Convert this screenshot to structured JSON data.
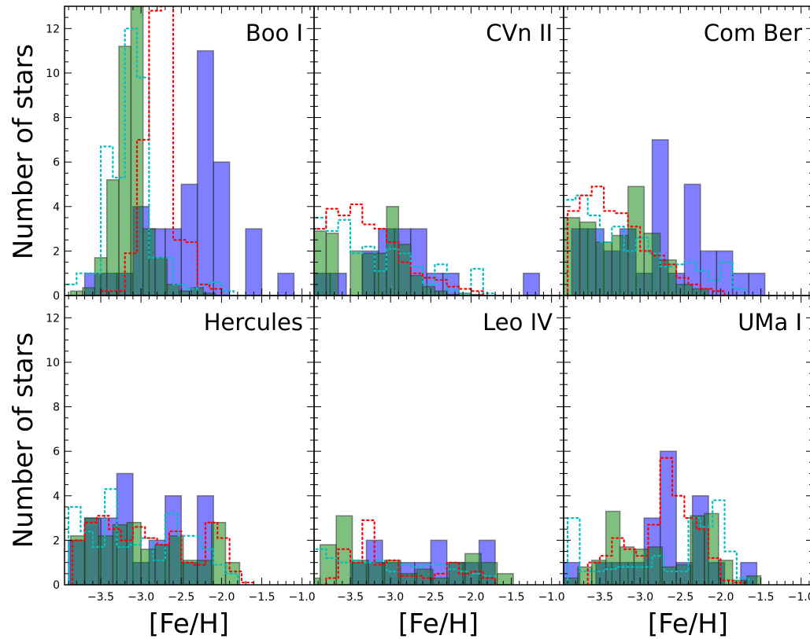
{
  "figure": {
    "ylabel": "Number of stars",
    "xlabel": "[Fe/H]"
  },
  "chart_data": [
    {
      "type": "bar",
      "title": "Boo I",
      "xlabel": "",
      "ylabel": "Number of stars",
      "xlim": [
        -3.95,
        -0.85
      ],
      "ylim": [
        0,
        13
      ],
      "xticks": [
        -3.5,
        -3.0,
        -2.5,
        -2.0,
        -1.5,
        -1.0
      ],
      "yticks": [
        0,
        2,
        4,
        6,
        8,
        10,
        12
      ],
      "grid": false,
      "series": [
        {
          "color": "#0000ff",
          "style": "filled",
          "edges": [
            -3.9,
            -3.7,
            -3.5,
            -3.3,
            -3.1,
            -2.9,
            -2.7,
            -2.5,
            -2.3,
            -2.1,
            -1.9,
            -1.7,
            -1.5,
            -1.3,
            -1.1
          ],
          "values": [
            0,
            1,
            1,
            1,
            4,
            3,
            3,
            5,
            11,
            6,
            0,
            3,
            0,
            1
          ]
        },
        {
          "color": "#008000",
          "style": "filled",
          "edges": [
            -3.875,
            -3.725,
            -3.575,
            -3.425,
            -3.275,
            -3.125,
            -2.975,
            -2.825,
            -2.675,
            -2.525,
            -2.375,
            -2.225,
            -2.075,
            -1.925
          ],
          "values": [
            0.2,
            0.35,
            1.7,
            5.2,
            11.2,
            13.8,
            3.0,
            1.7,
            0.5,
            0.2,
            0.35,
            0.1,
            0
          ]
        },
        {
          "color": "#00bfbf",
          "style": "dotted",
          "edges": [
            -3.95,
            -3.8,
            -3.65,
            -3.5,
            -3.35,
            -3.2,
            -3.05,
            -2.9,
            -2.75,
            -2.6,
            -2.45,
            -2.3,
            -2.15,
            -2.0,
            -1.85
          ],
          "values": [
            0.5,
            1.0,
            1.0,
            6.7,
            5.3,
            12.0,
            9.8,
            1.7,
            1.7,
            0.5,
            0.3,
            0.5,
            0.6,
            0.2
          ]
        },
        {
          "color": "#ff0000",
          "style": "dotted",
          "edges": [
            -3.5,
            -3.35,
            -3.2,
            -3.05,
            -2.9,
            -2.75,
            -2.6,
            -2.45,
            -2.3,
            -2.15,
            -2.0
          ],
          "values": [
            0.2,
            0.2,
            1.9,
            7.0,
            12.8,
            13.8,
            2.5,
            2.4,
            0.5,
            0.3
          ]
        }
      ]
    },
    {
      "type": "bar",
      "title": "CVn II",
      "xlabel": "",
      "ylabel": "",
      "xlim": [
        -3.95,
        -0.85
      ],
      "ylim": [
        0,
        13
      ],
      "xticks": [
        -3.5,
        -3.0,
        -2.5,
        -2.0,
        -1.5,
        -1.0
      ],
      "yticks": [
        0,
        2,
        4,
        6,
        8,
        10,
        12
      ],
      "grid": false,
      "series": [
        {
          "color": "#0000ff",
          "style": "filled",
          "edges": [
            -3.95,
            -3.75,
            -3.55,
            -3.35,
            -3.15,
            -2.95,
            -2.75,
            -2.55,
            -2.35,
            -2.15,
            -1.95,
            -1.75,
            -1.55,
            -1.35,
            -1.15
          ],
          "values": [
            1,
            1,
            0,
            2,
            3,
            3,
            3,
            1,
            1,
            0,
            0,
            0,
            0,
            1
          ]
        },
        {
          "color": "#008000",
          "style": "filled",
          "edges": [
            -3.95,
            -3.8,
            -3.65,
            -3.5,
            -3.35,
            -3.2,
            -3.05,
            -2.9,
            -2.75,
            -2.6,
            -2.45,
            -2.3,
            -2.15,
            -2.0,
            -1.85,
            -1.7
          ],
          "values": [
            2.9,
            2.8,
            0,
            2.0,
            1.9,
            1.9,
            4.0,
            2.3,
            0.9,
            0.4,
            0.2,
            0.05,
            0.1,
            0.05,
            0
          ]
        },
        {
          "color": "#00bfbf",
          "style": "dotted",
          "edges": [
            -3.95,
            -3.8,
            -3.65,
            -3.5,
            -3.35,
            -3.2,
            -3.05,
            -2.9,
            -2.75,
            -2.6,
            -2.45,
            -2.3,
            -2.15,
            -2.0,
            -1.85,
            -1.7
          ],
          "values": [
            3.5,
            2.9,
            3.4,
            1.9,
            2.2,
            1.1,
            2.1,
            1.9,
            1.3,
            0.5,
            1.4,
            0.2,
            0.1,
            1.2,
            0.1
          ]
        },
        {
          "color": "#ff0000",
          "style": "dotted",
          "edges": [
            -3.95,
            -3.8,
            -3.65,
            -3.5,
            -3.35,
            -3.2,
            -3.05,
            -2.9,
            -2.75,
            -2.6,
            -2.45,
            -2.3,
            -2.15,
            -2.0,
            -1.85
          ],
          "values": [
            3.0,
            3.9,
            3.6,
            4.1,
            3.2,
            3.0,
            2.4,
            1.5,
            1.0,
            0.8,
            0.7,
            0.4,
            0.3,
            0.2
          ]
        }
      ]
    },
    {
      "type": "bar",
      "title": "Com Ber",
      "xlabel": "",
      "ylabel": "",
      "xlim": [
        -3.95,
        -0.85
      ],
      "ylim": [
        0,
        13
      ],
      "xticks": [
        -3.5,
        -3.0,
        -2.5,
        -2.0,
        -1.5,
        -1.0
      ],
      "yticks": [
        0,
        2,
        4,
        6,
        8,
        10,
        12
      ],
      "grid": false,
      "series": [
        {
          "color": "#0000ff",
          "style": "filled",
          "edges": [
            -3.85,
            -3.65,
            -3.45,
            -3.25,
            -3.05,
            -2.85,
            -2.65,
            -2.45,
            -2.25,
            -2.05,
            -1.85,
            -1.65,
            -1.45
          ],
          "values": [
            3,
            3,
            2,
            3,
            1,
            7,
            1,
            5,
            2,
            2,
            1,
            1
          ]
        },
        {
          "color": "#008000",
          "style": "filled",
          "edges": [
            -3.95,
            -3.75,
            -3.55,
            -3.35,
            -3.15,
            -2.95,
            -2.75,
            -2.55,
            -2.35,
            -2.15
          ],
          "values": [
            3.5,
            3.3,
            2.4,
            2.7,
            4.9,
            2.8,
            1.6,
            0.5,
            0.3
          ]
        },
        {
          "color": "#00bfbf",
          "style": "dotted",
          "edges": [
            -3.95,
            -3.8,
            -3.65,
            -3.5,
            -3.35,
            -3.2,
            -3.05,
            -2.9,
            -2.75,
            -2.6,
            -2.45,
            -2.3,
            -2.15,
            -2.0,
            -1.85,
            -1.7
          ],
          "values": [
            4.3,
            4.5,
            3.6,
            2.4,
            3.1,
            2.0,
            2.6,
            1.9,
            1.3,
            1.4,
            1.5,
            1.1,
            0.7,
            1.5,
            0.3
          ]
        },
        {
          "color": "#ff0000",
          "style": "dotted",
          "edges": [
            -3.9,
            -3.75,
            -3.6,
            -3.45,
            -3.3,
            -3.15,
            -3.0,
            -2.85,
            -2.7,
            -2.55,
            -2.4,
            -2.25,
            -2.1,
            -1.95
          ],
          "values": [
            3.8,
            4.5,
            4.9,
            3.8,
            3.7,
            3.1,
            2.0,
            1.8,
            1.4,
            0.8,
            0.5,
            0.3,
            0.2
          ]
        }
      ]
    },
    {
      "type": "bar",
      "title": "Hercules",
      "xlabel": "[Fe/H]",
      "ylabel": "Number of stars",
      "xlim": [
        -3.95,
        -0.85
      ],
      "ylim": [
        0,
        13
      ],
      "xticks": [
        -3.5,
        -3.0,
        -2.5,
        -2.0,
        -1.5,
        -1.0
      ],
      "yticks": [
        0,
        2,
        4,
        6,
        8,
        10,
        12
      ],
      "grid": false,
      "series": [
        {
          "color": "#0000ff",
          "style": "filled",
          "edges": [
            -3.9,
            -3.7,
            -3.5,
            -3.3,
            -3.1,
            -2.9,
            -2.7,
            -2.5,
            -2.3,
            -2.1,
            -1.9
          ],
          "values": [
            2,
            3,
            3,
            5,
            1,
            2,
            4,
            1,
            4,
            0
          ]
        },
        {
          "color": "#008000",
          "style": "filled",
          "edges": [
            -3.875,
            -3.7,
            -3.525,
            -3.35,
            -3.175,
            -3.0,
            -2.825,
            -2.65,
            -2.475,
            -2.3,
            -2.125,
            -1.95,
            -1.775
          ],
          "values": [
            2.2,
            3.0,
            2.2,
            2.7,
            2.8,
            1.6,
            1.8,
            2.2,
            1.1,
            1.1,
            2.8,
            1.0
          ]
        },
        {
          "color": "#00bfbf",
          "style": "dotted",
          "edges": [
            -3.9,
            -3.75,
            -3.6,
            -3.45,
            -3.3,
            -3.15,
            -3.0,
            -2.85,
            -2.7,
            -2.55,
            -2.4,
            -2.25,
            -2.1,
            -1.95,
            -1.8
          ],
          "values": [
            3.5,
            2.4,
            1.7,
            4.3,
            1.7,
            1.8,
            2.1,
            1.1,
            3.2,
            2.2,
            2.2,
            1.6,
            0.9,
            0.5
          ]
        },
        {
          "color": "#ff0000",
          "style": "dotted",
          "edges": [
            -3.85,
            -3.7,
            -3.55,
            -3.4,
            -3.25,
            -3.1,
            -2.95,
            -2.8,
            -2.65,
            -2.5,
            -2.35,
            -2.2,
            -2.05,
            -1.9,
            -1.75,
            -1.6
          ],
          "values": [
            2.0,
            2.8,
            3.1,
            2.5,
            2.0,
            2.6,
            2.1,
            1.8,
            2.4,
            1.0,
            0.9,
            2.8,
            2.1,
            0.6,
            0.1
          ]
        }
      ]
    },
    {
      "type": "bar",
      "title": "Leo IV",
      "xlabel": "[Fe/H]",
      "ylabel": "",
      "xlim": [
        -3.95,
        -0.85
      ],
      "ylim": [
        0,
        13
      ],
      "xticks": [
        -3.5,
        -3.0,
        -2.5,
        -2.0,
        -1.5,
        -1.0
      ],
      "yticks": [
        0,
        2,
        4,
        6,
        8,
        10,
        12
      ],
      "grid": false,
      "series": [
        {
          "color": "#0000ff",
          "style": "filled",
          "edges": [
            -3.5,
            -3.3,
            -3.1,
            -2.9,
            -2.7,
            -2.5,
            -2.3,
            -2.1,
            -1.9,
            -1.7
          ],
          "values": [
            1,
            2,
            1,
            1,
            1,
            2,
            1,
            1,
            2
          ]
        },
        {
          "color": "#008000",
          "style": "filled",
          "edges": [
            -3.95,
            -3.875,
            -3.675,
            -3.475,
            -3.275,
            -3.075,
            -2.875,
            -2.675,
            -2.475,
            -2.275,
            -2.075,
            -1.875,
            -1.675,
            -1.475
          ],
          "values": [
            0.3,
            1.8,
            3.1,
            1.1,
            1.0,
            1.1,
            0.5,
            0.7,
            0.3,
            1.0,
            1.4,
            1.0,
            0.5
          ]
        },
        {
          "color": "#00bfbf",
          "style": "dotted",
          "edges": [
            -3.95,
            -3.8,
            -3.65,
            -3.5,
            -3.35,
            -3.2,
            -3.05,
            -2.9,
            -2.75,
            -2.6,
            -2.45,
            -2.3,
            -2.15,
            -2.0,
            -1.85,
            -1.7
          ],
          "values": [
            1.6,
            1.2,
            1.0,
            1.1,
            1.0,
            1.1,
            0.6,
            0.9,
            0.8,
            0.9,
            0.9,
            0.7,
            0.6,
            0.5,
            0.4
          ]
        },
        {
          "color": "#ff0000",
          "style": "dotted",
          "edges": [
            -3.8,
            -3.65,
            -3.5,
            -3.35,
            -3.2,
            -3.05,
            -2.9,
            -2.75,
            -2.6,
            -2.45,
            -2.3,
            -2.15,
            -2.0,
            -1.85,
            -1.7
          ],
          "values": [
            0.3,
            1.6,
            1.0,
            2.9,
            0.9,
            1.1,
            0.4,
            0.4,
            0.3,
            0.5,
            1.0,
            0.5,
            0.6,
            0.3
          ]
        }
      ]
    },
    {
      "type": "bar",
      "title": "UMa I",
      "xlabel": "[Fe/H]",
      "ylabel": "",
      "xlim": [
        -3.95,
        -0.85
      ],
      "ylim": [
        0,
        13
      ],
      "xticks": [
        -3.5,
        -3.0,
        -2.5,
        -2.0,
        -1.5,
        -1.0
      ],
      "yticks": [
        0,
        2,
        4,
        6,
        8,
        10,
        12
      ],
      "grid": false,
      "series": [
        {
          "color": "#0000ff",
          "style": "filled",
          "edges": [
            -3.95,
            -3.75,
            -3.55,
            -3.35,
            -3.15,
            -2.95,
            -2.75,
            -2.55,
            -2.35,
            -2.15,
            -1.95,
            -1.75,
            -1.55
          ],
          "values": [
            1,
            0,
            1,
            1,
            1,
            3,
            6,
            1,
            4,
            1,
            0,
            1
          ]
        },
        {
          "color": "#008000",
          "style": "filled",
          "edges": [
            -3.95,
            -3.775,
            -3.6,
            -3.425,
            -3.25,
            -3.075,
            -2.9,
            -2.725,
            -2.55,
            -2.375,
            -2.2,
            -2.025,
            -1.85,
            -1.675,
            -1.5
          ],
          "values": [
            0.3,
            0.8,
            1.1,
            3.3,
            1.7,
            1.6,
            1.7,
            0.8,
            0.9,
            3.1,
            3.2,
            1.1,
            0.2,
            0.4
          ]
        },
        {
          "color": "#00bfbf",
          "style": "dotted",
          "edges": [
            -3.9,
            -3.75,
            -3.6,
            -3.45,
            -3.3,
            -3.15,
            -3.0,
            -2.85,
            -2.7,
            -2.55,
            -2.4,
            -2.25,
            -2.1,
            -1.95,
            -1.8,
            -1.65
          ],
          "values": [
            3.0,
            0.6,
            0.6,
            0.7,
            0.8,
            0.8,
            0.8,
            1.3,
            0.6,
            0.6,
            3.0,
            2.6,
            3.8,
            1.5,
            0.3
          ]
        },
        {
          "color": "#ff0000",
          "style": "dotted",
          "edges": [
            -3.65,
            -3.5,
            -3.35,
            -3.2,
            -3.05,
            -2.9,
            -2.75,
            -2.6,
            -2.45,
            -2.3,
            -2.15,
            -2.0,
            -1.85,
            -1.7
          ],
          "values": [
            1.0,
            1.3,
            2.1,
            1.6,
            1.3,
            2.7,
            5.7,
            4.0,
            3.0,
            2.5,
            1.2,
            0.2,
            0.1
          ]
        }
      ]
    }
  ]
}
